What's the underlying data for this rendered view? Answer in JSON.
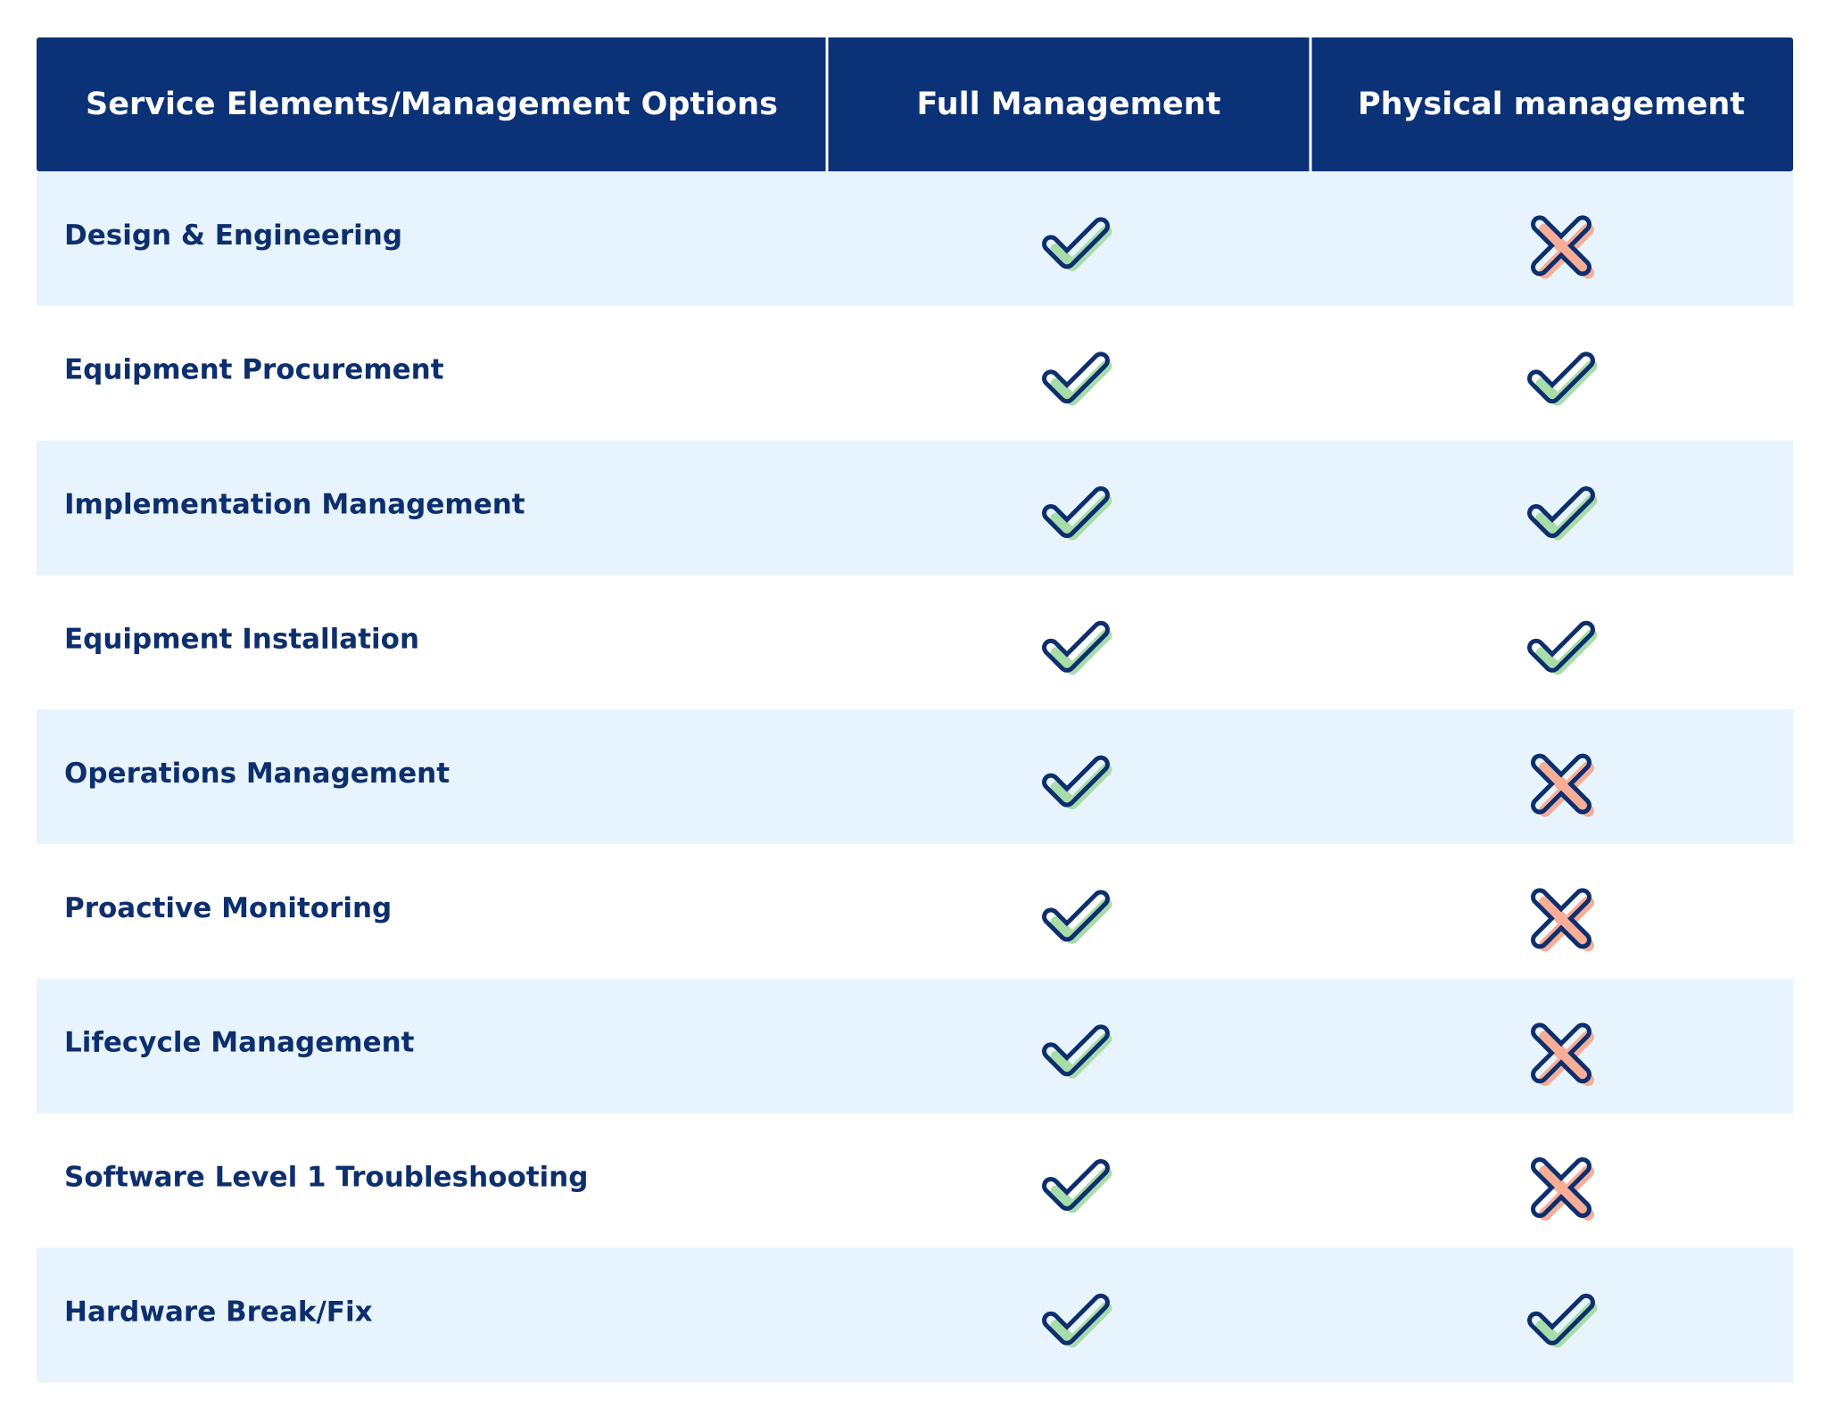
{
  "table": {
    "headers": [
      "Service Elements/Management Options",
      "Full Management",
      "Physical management"
    ],
    "rows": [
      {
        "label": "Design & Engineering",
        "full": true,
        "physical": false
      },
      {
        "label": "Equipment Procurement",
        "full": true,
        "physical": true
      },
      {
        "label": "Implementation Management",
        "full": true,
        "physical": true
      },
      {
        "label": "Equipment Installation",
        "full": true,
        "physical": true
      },
      {
        "label": "Operations Management",
        "full": true,
        "physical": false
      },
      {
        "label": "Proactive Monitoring",
        "full": true,
        "physical": false
      },
      {
        "label": "Lifecycle Management",
        "full": true,
        "physical": false
      },
      {
        "label": "Software Level 1 Troubleshooting",
        "full": true,
        "physical": false
      },
      {
        "label": "Hardware Break/Fix",
        "full": true,
        "physical": true
      }
    ]
  }
}
